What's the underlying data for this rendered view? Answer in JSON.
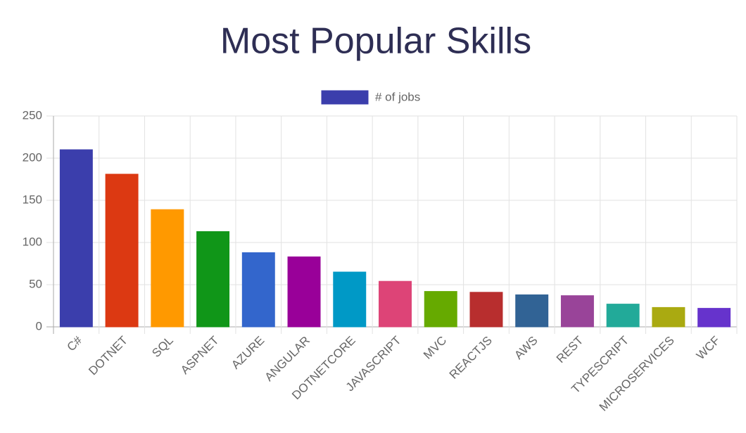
{
  "chart_data": {
    "type": "bar",
    "title": "Most Popular Skills",
    "categories": [
      "C#",
      "DOTNET",
      "SQL",
      "ASPNET",
      "AZURE",
      "ANGULAR",
      "DOTNETCORE",
      "JAVASCRIPT",
      "MVC",
      "REACTJS",
      "AWS",
      "REST",
      "TYPESCRIPT",
      "MICROSERVICES",
      "WCF"
    ],
    "series": [
      {
        "name": "# of jobs",
        "color": "#3b3eac",
        "colors": [
          "#3b3eac",
          "#dc3912",
          "#ff9900",
          "#109618",
          "#3366cc",
          "#990099",
          "#0099c6",
          "#dd4477",
          "#66aa00",
          "#b82e2e",
          "#316395",
          "#994499",
          "#22aa99",
          "#aaaa11",
          "#6633cc"
        ],
        "values": [
          210,
          181,
          139,
          113,
          88,
          83,
          65,
          54,
          42,
          41,
          38,
          37,
          27,
          23,
          22
        ]
      }
    ],
    "ylim": [
      0,
      250
    ],
    "yticks": [
      0,
      50,
      100,
      150,
      200,
      250
    ],
    "grid": true,
    "legend": "top"
  }
}
